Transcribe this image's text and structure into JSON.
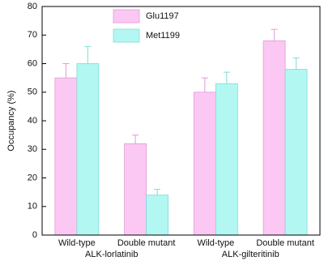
{
  "chart_data": {
    "type": "bar",
    "ylabel": "Occupancy (%)",
    "categories": [
      "Wild-type",
      "Double mutant",
      "Wild-type",
      "Double mutant"
    ],
    "groups": [
      "ALK-lorlatinib",
      "ALK-gilteritinib"
    ],
    "series": [
      {
        "name": "Glu1197",
        "color": "#fbc8f3",
        "edge": "#e29ad8",
        "values": [
          55,
          32,
          50,
          68
        ],
        "errors": [
          5,
          3,
          5,
          4
        ]
      },
      {
        "name": "Met1199",
        "color": "#b2f7f2",
        "edge": "#7fdcd6",
        "values": [
          60,
          14,
          53,
          58
        ],
        "errors": [
          6,
          2,
          4,
          4
        ]
      }
    ],
    "ylim": [
      0,
      80
    ],
    "yticks": [
      0,
      10,
      20,
      30,
      40,
      50,
      60,
      70,
      80
    ]
  }
}
